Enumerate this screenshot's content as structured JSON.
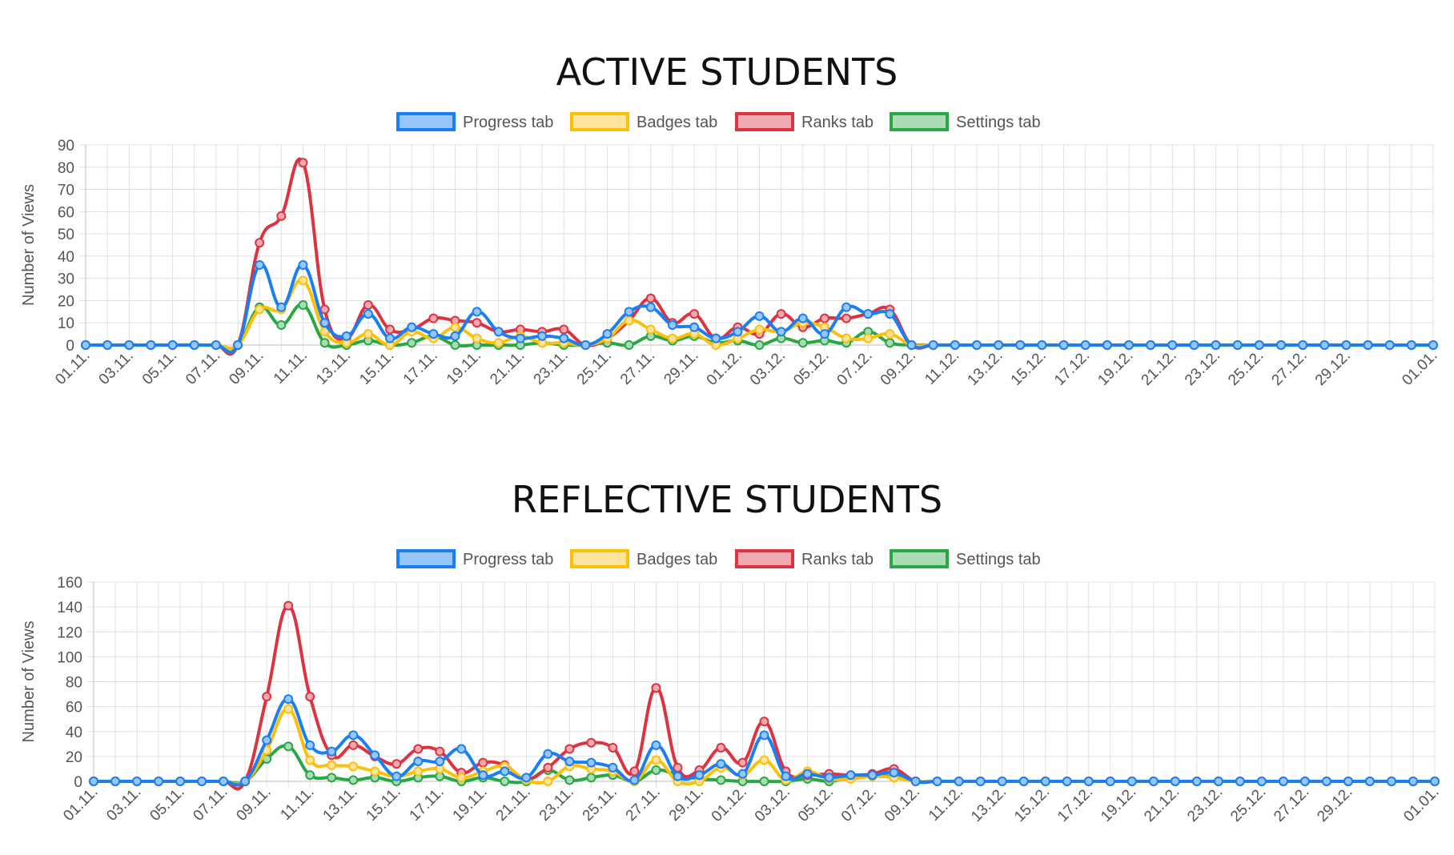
{
  "chart_data": [
    {
      "type": "line",
      "title": "ACTIVE STUDENTS",
      "ylabel": "Number of Views",
      "xlabel": "",
      "ylim": [
        0,
        90
      ],
      "yticks": [
        0,
        10,
        20,
        30,
        40,
        50,
        60,
        70,
        80,
        90
      ],
      "grid": true,
      "legend_position": "top",
      "x_tick_labels": [
        "01.11.",
        "03.11.",
        "05.11.",
        "07.11.",
        "09.11.",
        "11.11.",
        "13.11.",
        "15.11.",
        "17.11.",
        "19.11.",
        "21.11.",
        "23.11.",
        "25.11.",
        "27.11.",
        "29.11.",
        "01.12.",
        "03.12.",
        "05.12.",
        "07.12.",
        "09.12.",
        "11.12.",
        "13.12.",
        "15.12.",
        "17.12.",
        "19.12.",
        "21.12.",
        "23.12.",
        "25.12.",
        "27.12.",
        "29.12.",
        "01.01."
      ],
      "series": [
        {
          "name": "Progress tab",
          "color": "#1a7ff2",
          "fill": "#96c6fa",
          "values": [
            0,
            0,
            0,
            0,
            0,
            0,
            0,
            0,
            36,
            17,
            36,
            10,
            4,
            14,
            3,
            8,
            5,
            4,
            15,
            6,
            3,
            4,
            3,
            0,
            5,
            15,
            17,
            9,
            8,
            3,
            6,
            13,
            6,
            12,
            5,
            17,
            14,
            14,
            0,
            0,
            0,
            0,
            0,
            0,
            0,
            0,
            0,
            0,
            0,
            0,
            0,
            0,
            0,
            0,
            0,
            0,
            0,
            0,
            0,
            0,
            0,
            0,
            0
          ]
        },
        {
          "name": "Badges tab",
          "color": "#fcbf0a",
          "fill": "#fde39b",
          "values": [
            0,
            0,
            0,
            0,
            0,
            0,
            0,
            0,
            16,
            16,
            29,
            6,
            1,
            5,
            0,
            6,
            3,
            8,
            3,
            1,
            4,
            1,
            1,
            0,
            3,
            11,
            7,
            3,
            5,
            0,
            3,
            7,
            6,
            10,
            8,
            3,
            3,
            5,
            0,
            0,
            0,
            0,
            0,
            0,
            0,
            0,
            0,
            0,
            0,
            0,
            0,
            0,
            0,
            0,
            0,
            0,
            0,
            0,
            0,
            0,
            0,
            0,
            0
          ]
        },
        {
          "name": "Ranks tab",
          "color": "#dd3341",
          "fill": "#f0a9b0",
          "values": [
            0,
            0,
            0,
            0,
            0,
            0,
            0,
            0,
            46,
            58,
            82,
            16,
            3,
            18,
            7,
            7,
            12,
            11,
            10,
            6,
            7,
            6,
            7,
            0,
            3,
            11,
            21,
            10,
            14,
            3,
            8,
            5,
            14,
            8,
            12,
            12,
            14,
            16,
            0,
            0,
            0,
            0,
            0,
            0,
            0,
            0,
            0,
            0,
            0,
            0,
            0,
            0,
            0,
            0,
            0,
            0,
            0,
            0,
            0,
            0,
            0,
            0,
            0
          ]
        },
        {
          "name": "Settings tab",
          "color": "#28a745",
          "fill": "#a9dcb5",
          "values": [
            0,
            0,
            0,
            0,
            0,
            0,
            0,
            0,
            17,
            9,
            18,
            1,
            0,
            2,
            0,
            1,
            4,
            0,
            0,
            0,
            0,
            1,
            0,
            0,
            1,
            0,
            4,
            2,
            4,
            1,
            2,
            0,
            3,
            1,
            2,
            1,
            6,
            1,
            0,
            0,
            0,
            0,
            0,
            0,
            0,
            0,
            0,
            0,
            0,
            0,
            0,
            0,
            0,
            0,
            0,
            0,
            0,
            0,
            0,
            0,
            0,
            0,
            0
          ]
        }
      ]
    },
    {
      "type": "line",
      "title": "REFLECTIVE STUDENTS",
      "ylabel": "Number of Views",
      "xlabel": "",
      "ylim": [
        0,
        160
      ],
      "yticks": [
        0,
        20,
        40,
        60,
        80,
        100,
        120,
        140,
        160
      ],
      "grid": true,
      "legend_position": "top",
      "x_tick_labels": [
        "01.11.",
        "03.11.",
        "05.11.",
        "07.11.",
        "09.11.",
        "11.11.",
        "13.11.",
        "15.11.",
        "17.11.",
        "19.11.",
        "21.11.",
        "23.11.",
        "25.11.",
        "27.11.",
        "29.11.",
        "01.12.",
        "03.12.",
        "05.12.",
        "07.12.",
        "09.12.",
        "11.12.",
        "13.12.",
        "15.12.",
        "17.12.",
        "19.12.",
        "21.12.",
        "23.12.",
        "25.12.",
        "27.12.",
        "29.12.",
        "01.01."
      ],
      "series": [
        {
          "name": "Progress tab",
          "color": "#1a7ff2",
          "fill": "#96c6fa",
          "values": [
            0,
            0,
            0,
            0,
            0,
            0,
            0,
            0,
            33,
            66,
            29,
            24,
            37,
            21,
            4,
            16,
            16,
            26,
            5,
            8,
            3,
            22,
            16,
            15,
            11,
            1,
            29,
            4,
            5,
            14,
            6,
            37,
            4,
            6,
            3,
            5,
            5,
            7,
            0,
            0,
            0,
            0,
            0,
            0,
            0,
            0,
            0,
            0,
            0,
            0,
            0,
            0,
            0,
            0,
            0,
            0,
            0,
            0,
            0,
            0,
            0,
            0,
            0
          ]
        },
        {
          "name": "Badges tab",
          "color": "#fcbf0a",
          "fill": "#fde39b",
          "values": [
            0,
            0,
            0,
            0,
            0,
            0,
            0,
            0,
            25,
            58,
            17,
            13,
            12,
            8,
            4,
            8,
            10,
            3,
            8,
            12,
            1,
            0,
            12,
            10,
            8,
            0,
            17,
            0,
            0,
            11,
            5,
            17,
            1,
            8,
            2,
            2,
            4,
            3,
            0,
            0,
            0,
            0,
            0,
            0,
            0,
            0,
            0,
            0,
            0,
            0,
            0,
            0,
            0,
            0,
            0,
            0,
            0,
            0,
            0,
            0,
            0,
            0,
            0
          ]
        },
        {
          "name": "Ranks tab",
          "color": "#dd3341",
          "fill": "#f0a9b0",
          "values": [
            0,
            0,
            0,
            0,
            0,
            0,
            0,
            0,
            68,
            141,
            68,
            21,
            29,
            20,
            14,
            26,
            24,
            7,
            15,
            13,
            2,
            11,
            26,
            31,
            27,
            8,
            75,
            11,
            9,
            27,
            15,
            48,
            8,
            5,
            6,
            5,
            6,
            10,
            0,
            0,
            0,
            0,
            0,
            0,
            0,
            0,
            0,
            0,
            0,
            0,
            0,
            0,
            0,
            0,
            0,
            0,
            0,
            0,
            0,
            0,
            0,
            0,
            0
          ]
        },
        {
          "name": "Settings tab",
          "color": "#28a745",
          "fill": "#a9dcb5",
          "values": [
            0,
            0,
            0,
            0,
            0,
            0,
            0,
            0,
            18,
            28,
            5,
            3,
            1,
            3,
            0,
            3,
            4,
            0,
            3,
            0,
            0,
            9,
            1,
            3,
            5,
            0,
            9,
            5,
            2,
            1,
            0,
            0,
            0,
            2,
            0,
            3,
            4,
            4,
            0,
            0,
            0,
            0,
            0,
            0,
            0,
            0,
            0,
            0,
            0,
            0,
            0,
            0,
            0,
            0,
            0,
            0,
            0,
            0,
            0,
            0,
            0,
            0,
            0
          ]
        }
      ]
    }
  ]
}
